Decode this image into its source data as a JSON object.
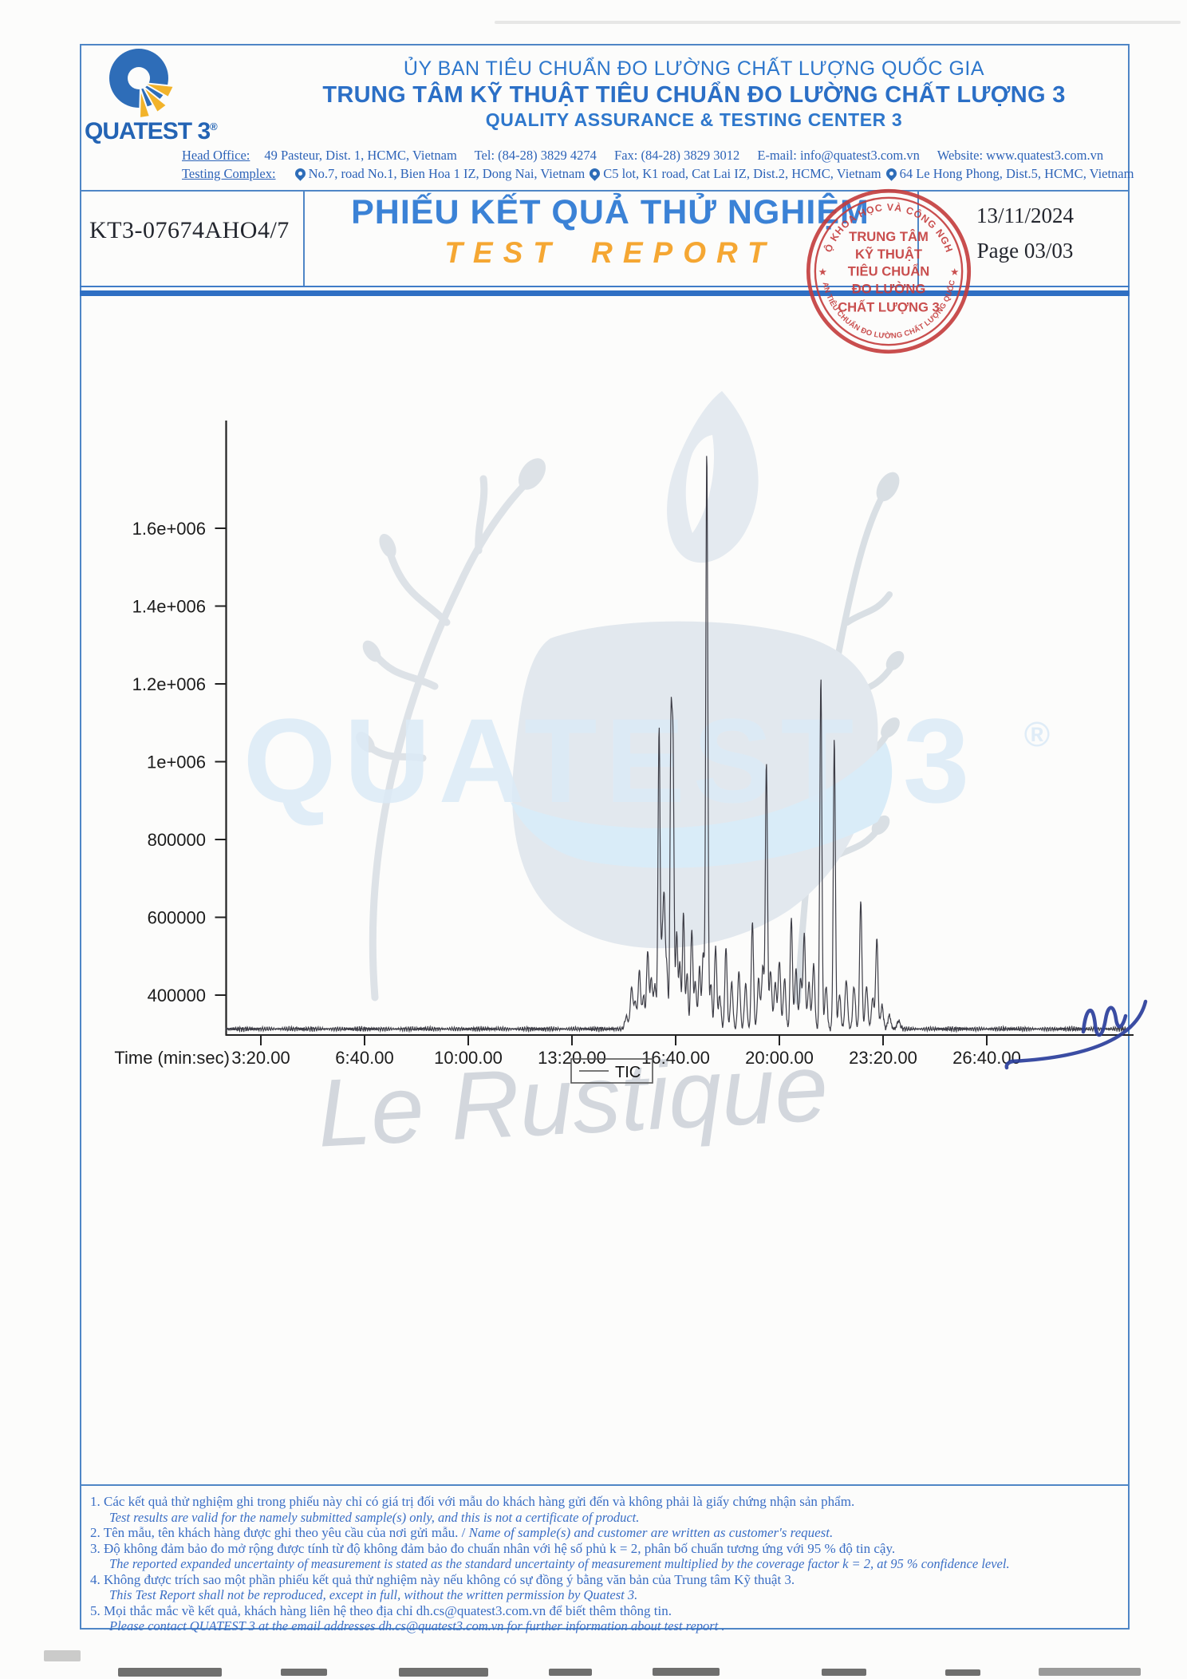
{
  "header": {
    "logo_text": "QUATEST 3",
    "logo_reg": "®",
    "org_line1": "ỦY BAN TIÊU CHUẨN ĐO LƯỜNG CHẤT LƯỢNG QUỐC GIA",
    "org_line2": "TRUNG TÂM KỸ THUẬT TIÊU CHUẨN ĐO LƯỜNG CHẤT LƯỢNG 3",
    "org_line3": "QUALITY ASSURANCE & TESTING CENTER 3",
    "head_office_label": "Head Office:",
    "head_office": "49 Pasteur, Dist. 1, HCMC, Vietnam",
    "tel": "Tel: (84-28) 3829 4274",
    "fax": "Fax: (84-28) 3829 3012",
    "email": "E-mail: info@quatest3.com.vn",
    "website": "Website: www.quatest3.com.vn",
    "testing_complex_label": "Testing Complex:",
    "testing_sites": [
      "No.7, road No.1, Bien Hoa 1 IZ, Dong Nai, Vietnam",
      "C5 lot, K1 road, Cat Lai IZ, Dist.2, HCMC, Vietnam",
      "64 Le Hong Phong, Dist.5, HCMC, Vietnam"
    ]
  },
  "title_row": {
    "report_no": "KT3-07674AHO4/7",
    "title_vi": "PHIẾU KẾT QUẢ THỬ NGHIỆM",
    "title_en": "TEST REPORT",
    "date": "13/11/2024",
    "page": "Page 03/03"
  },
  "stamp": {
    "ring_top": "BỘ KHOA HỌC VÀ CÔNG NGHỆ",
    "ring_bottom": "ỦY BAN TIÊU CHUẨN ĐO LƯỜNG CHẤT LƯỢNG QUỐC GIA",
    "center_lines": [
      "TRUNG TÂM",
      "KỸ THUẬT",
      "TIÊU CHUẨN",
      "ĐO LƯỜNG",
      "CHẤT LƯỢNG 3"
    ],
    "star": "★",
    "color": "#c43c3c"
  },
  "watermark": {
    "brand": "QUATEST 3",
    "registered": "®",
    "script": "Le Rustique"
  },
  "chart_data": {
    "type": "line",
    "title": "",
    "xlabel": "Time (min:sec)",
    "ylabel": "",
    "legend": "TIC",
    "legend_position": "bottom-center",
    "grid": false,
    "x_unit": "seconds",
    "x_range_seconds": [
      132,
      1868
    ],
    "y_range": [
      250000,
      1900000
    ],
    "baseline_intensity": 313000,
    "x_ticks": [
      {
        "t": 200,
        "label": "3:20.00"
      },
      {
        "t": 400,
        "label": "6:40.00"
      },
      {
        "t": 600,
        "label": "10:00.00"
      },
      {
        "t": 800,
        "label": "13:20.00"
      },
      {
        "t": 1000,
        "label": "16:40.00"
      },
      {
        "t": 1200,
        "label": "20:00.00"
      },
      {
        "t": 1400,
        "label": "23:20.00"
      },
      {
        "t": 1600,
        "label": "26:40.00"
      }
    ],
    "y_ticks": [
      {
        "v": 1600000,
        "label": "1.6e+006"
      },
      {
        "v": 1400000,
        "label": "1.4e+006"
      },
      {
        "v": 1200000,
        "label": "1.2e+006"
      },
      {
        "v": 1000000,
        "label": "1e+006"
      },
      {
        "v": 800000,
        "label": "800000"
      },
      {
        "v": 600000,
        "label": "600000"
      },
      {
        "v": 400000,
        "label": "400000"
      }
    ],
    "peaks_t_v_w": [
      [
        905,
        345000,
        3.0
      ],
      [
        915,
        420000,
        2.5
      ],
      [
        922,
        382000,
        2.5
      ],
      [
        930,
        462000,
        2.4
      ],
      [
        938,
        398000,
        2.5
      ],
      [
        946,
        515000,
        2.2
      ],
      [
        953,
        442000,
        2.4
      ],
      [
        960,
        425000,
        2.4
      ],
      [
        968,
        1085000,
        2.0
      ],
      [
        974,
        520000,
        2.0
      ],
      [
        978,
        628000,
        2.0
      ],
      [
        983,
        472000,
        2.0
      ],
      [
        991,
        1068000,
        1.9
      ],
      [
        995,
        995000,
        1.9
      ],
      [
        1002,
        562000,
        2.0
      ],
      [
        1008,
        482000,
        2.0
      ],
      [
        1015,
        612000,
        2.0
      ],
      [
        1022,
        458000,
        2.0
      ],
      [
        1031,
        568000,
        2.2
      ],
      [
        1038,
        432000,
        2.2
      ],
      [
        1046,
        472000,
        2.2
      ],
      [
        1053,
        508000,
        2.0
      ],
      [
        1060,
        1800000,
        2.0
      ],
      [
        1068,
        432000,
        2.0
      ],
      [
        1077,
        528000,
        2.2
      ],
      [
        1085,
        398000,
        2.4
      ],
      [
        1097,
        522000,
        2.2
      ],
      [
        1108,
        432000,
        2.4
      ],
      [
        1122,
        458000,
        2.4
      ],
      [
        1135,
        428000,
        2.4
      ],
      [
        1148,
        588000,
        2.2
      ],
      [
        1160,
        442000,
        2.4
      ],
      [
        1168,
        472000,
        2.4
      ],
      [
        1175,
        1000000,
        2.0
      ],
      [
        1183,
        462000,
        2.4
      ],
      [
        1192,
        432000,
        2.4
      ],
      [
        1200,
        488000,
        2.4
      ],
      [
        1210,
        442000,
        2.4
      ],
      [
        1223,
        598000,
        2.2
      ],
      [
        1232,
        468000,
        2.4
      ],
      [
        1241,
        442000,
        2.4
      ],
      [
        1248,
        558000,
        2.2
      ],
      [
        1257,
        432000,
        2.4
      ],
      [
        1266,
        478000,
        2.4
      ],
      [
        1280,
        1215000,
        2.0
      ],
      [
        1290,
        422000,
        2.4
      ],
      [
        1306,
        1060000,
        2.0
      ],
      [
        1316,
        402000,
        2.4
      ],
      [
        1329,
        438000,
        2.5
      ],
      [
        1344,
        422000,
        2.5
      ],
      [
        1357,
        642000,
        2.2
      ],
      [
        1368,
        422000,
        2.5
      ],
      [
        1380,
        392000,
        2.5
      ],
      [
        1388,
        548000,
        2.2
      ],
      [
        1398,
        372000,
        2.6
      ],
      [
        1412,
        348000,
        2.8
      ],
      [
        1430,
        334000,
        3.0
      ]
    ]
  },
  "footer_notes": [
    {
      "style": "vi",
      "text": "1. Các kết quả thử nghiệm ghi trong phiếu này chỉ có giá trị đối với mẫu do khách hàng gửi đến và không phải là giấy chứng nhận sản phẩm."
    },
    {
      "style": "en",
      "text": "Test results are valid for the namely submitted sample(s) only, and this is not a certificate of product."
    },
    {
      "style": "vi",
      "text": "2. Tên mẫu, tên khách hàng được ghi theo yêu cầu của nơi gửi mẫu. / ",
      "append_italic": "Name of sample(s) and customer are written as customer's request."
    },
    {
      "style": "vi",
      "text": "3. Độ không đảm bảo đo mở rộng được tính từ độ không đảm bảo đo chuẩn nhân với hệ số phủ k = 2, phân bố chuẩn tương ứng với 95 % độ tin cậy."
    },
    {
      "style": "en",
      "text": "The reported expanded uncertainty of measurement is stated as the standard uncertainty of measurement multiplied by the coverage factor k = 2, at 95 % confidence level."
    },
    {
      "style": "vi",
      "text": "4. Không được trích sao một phần phiếu kết quả thử nghiệm này nếu không có sự đồng ý bằng văn bản của Trung tâm Kỹ thuật 3."
    },
    {
      "style": "en",
      "text": "This Test Report shall not be reproduced, except in full, without the written permission by Quatest 3."
    },
    {
      "style": "vi",
      "text": "5. Mọi thắc mắc về kết quả, khách hàng liên hệ theo địa chỉ dh.cs@quatest3.com.vn để biết thêm thông tin."
    },
    {
      "style": "en",
      "text": "Please contact QUATEST 3 at the email addresses dh.cs@quatest3.com.vn for further information about test report ."
    }
  ]
}
